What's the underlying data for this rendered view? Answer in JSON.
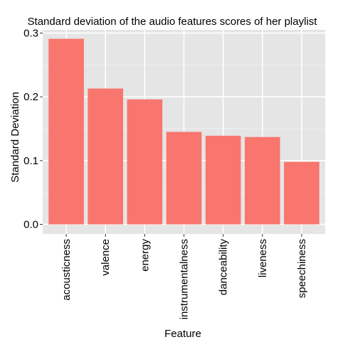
{
  "chart_data": {
    "type": "bar",
    "title": "Standard deviation of the audio features scores of her playlist",
    "xlabel": "Feature",
    "ylabel": "Standard Deviation",
    "categories": [
      "acousticness",
      "valence",
      "energy",
      "instrumentalness",
      "danceability",
      "liveness",
      "speechiness"
    ],
    "values": [
      0.291,
      0.213,
      0.196,
      0.145,
      0.139,
      0.137,
      0.098
    ],
    "y_ticks": [
      "0.0",
      "0.1",
      "0.2",
      "0.3"
    ],
    "ylim": [
      -0.015,
      0.305
    ],
    "grid": true,
    "legend": "none",
    "colors": {
      "bar": "#F8766D",
      "panel": "#E5E5E5",
      "grid_major": "#FFFFFF",
      "grid_minor": "#F2F2F2"
    }
  }
}
